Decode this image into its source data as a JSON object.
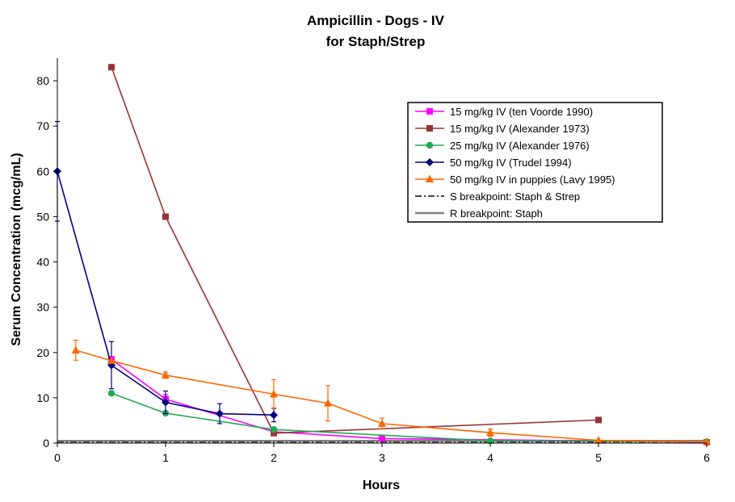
{
  "chart_data": {
    "type": "line",
    "title": "Ampicillin  - Dogs - IV",
    "subtitle": "for Staph/Strep",
    "xlabel": "Hours",
    "ylabel": "Serum Concentration (mcg/mL)",
    "xlim": [
      0,
      6
    ],
    "ylim": [
      0,
      85
    ],
    "xticks": [
      0,
      1,
      2,
      3,
      4,
      5,
      6
    ],
    "yticks": [
      0,
      10,
      20,
      30,
      40,
      50,
      60,
      70,
      80
    ],
    "grid": false,
    "legend_position": "top-right",
    "series": [
      {
        "name": "15 mg/kg IV (ten Voorde 1990)",
        "color": "#ff00ff",
        "marker": "square",
        "points": [
          {
            "x": 0.5,
            "y": 18.5
          },
          {
            "x": 1,
            "y": 9.7,
            "err": 1.0
          },
          {
            "x": 2,
            "y": 2.5
          },
          {
            "x": 3,
            "y": 1.0
          },
          {
            "x": 6,
            "y": 0.2
          }
        ]
      },
      {
        "name": "15 mg/kg IV (Alexander 1973)",
        "color": "#993333",
        "marker": "square",
        "points": [
          {
            "x": 0.5,
            "y": 83
          },
          {
            "x": 1,
            "y": 50
          },
          {
            "x": 2,
            "y": 2.2
          },
          {
            "x": 5,
            "y": 5.1
          }
        ]
      },
      {
        "name": "25 mg/kg IV (Alexander 1976)",
        "color": "#22aa55",
        "marker": "circle",
        "points": [
          {
            "x": 0.5,
            "y": 11
          },
          {
            "x": 1,
            "y": 6.6
          },
          {
            "x": 2,
            "y": 3.0
          },
          {
            "x": 4,
            "y": 0.5
          },
          {
            "x": 6,
            "y": 0.3
          }
        ]
      },
      {
        "name": "50 mg/kg IV (Trudel 1994)",
        "color": "#000080",
        "marker": "diamond",
        "points": [
          {
            "x": 0,
            "y": 60,
            "err": 11
          },
          {
            "x": 0.5,
            "y": 17.2,
            "err": 5.2
          },
          {
            "x": 1,
            "y": 9.0,
            "err": 2.5
          },
          {
            "x": 1.5,
            "y": 6.5,
            "err": 2.2
          },
          {
            "x": 2,
            "y": 6.2,
            "err": 1.5
          }
        ]
      },
      {
        "name": "50 mg/kg IV in puppies (Lavy 1995)",
        "color": "#ff6600",
        "marker": "triangle",
        "points": [
          {
            "x": 0.17,
            "y": 20.5,
            "err": 2.2
          },
          {
            "x": 0.5,
            "y": 18.2
          },
          {
            "x": 1,
            "y": 15,
            "err": 0.7
          },
          {
            "x": 2,
            "y": 10.8,
            "err": 3.2
          },
          {
            "x": 2.5,
            "y": 8.8,
            "err": 3.9
          },
          {
            "x": 3,
            "y": 4.3,
            "err": 1.2
          },
          {
            "x": 4,
            "y": 2.3,
            "err": 0.8
          },
          {
            "x": 5,
            "y": 0.6
          },
          {
            "x": 6,
            "y": 0.3
          }
        ]
      }
    ],
    "reference_lines": [
      {
        "name": "S breakpoint: Staph & Strep",
        "y": 0.25,
        "color": "#000000",
        "style": "dash-dot"
      },
      {
        "name": "R breakpoint: Staph",
        "y": 0.5,
        "color": "#808080",
        "style": "solid"
      }
    ]
  }
}
